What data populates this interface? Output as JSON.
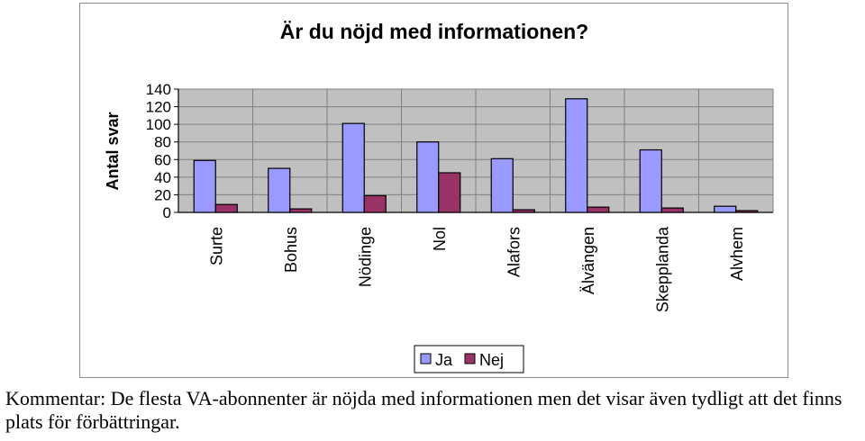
{
  "chart_data": {
    "type": "bar",
    "title": "Är du nöjd med informationen?",
    "ylabel": "Antal svar",
    "xlabel": "",
    "ylim": [
      0,
      140
    ],
    "yticks": [
      0,
      20,
      40,
      60,
      80,
      100,
      120,
      140
    ],
    "grid": true,
    "legend_position": "bottom",
    "categories": [
      "Surte",
      "Bohus",
      "Nödinge",
      "Nol",
      "Alafors",
      "Älvängen",
      "Skepplanda",
      "Alvhem"
    ],
    "series": [
      {
        "name": "Ja",
        "color": "#9999ff",
        "values": [
          59,
          50,
          101,
          80,
          61,
          129,
          71,
          7
        ]
      },
      {
        "name": "Nej",
        "color": "#993366",
        "values": [
          9,
          4,
          19,
          45,
          3,
          6,
          5,
          2
        ]
      }
    ],
    "plot_background": "#c0c0c0"
  },
  "comment": "Kommentar: De flesta VA-abonnenter är nöjda med informationen men det visar även tydligt att det finns plats för förbättringar."
}
